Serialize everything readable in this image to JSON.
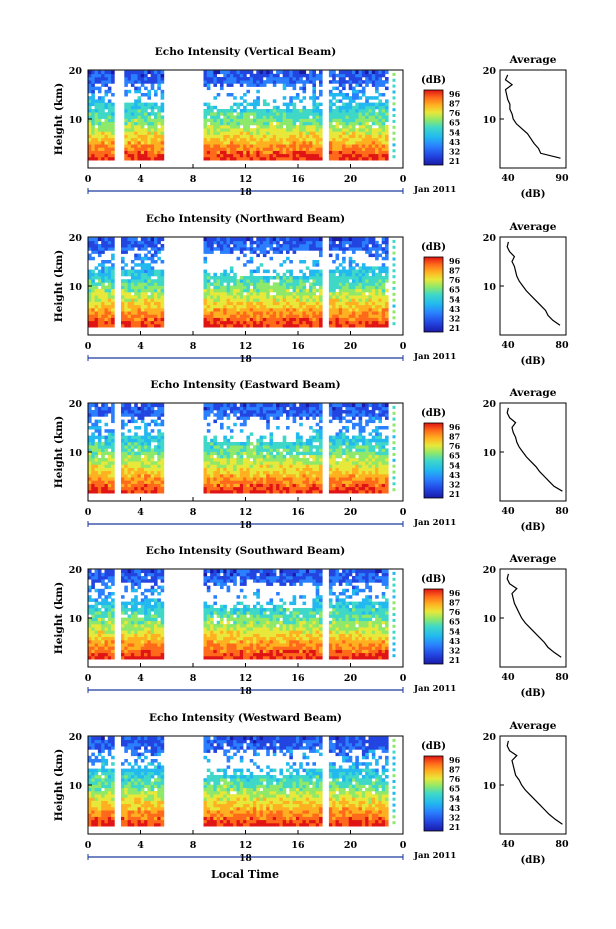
{
  "figure": {
    "xlabel": "Local Time",
    "date_label": "Jan 2011",
    "day_label": "18",
    "colorbar_unit": "(dB)",
    "colorbar_ticks": [
      "96",
      "87",
      "76",
      "65",
      "54",
      "43",
      "32",
      "21"
    ],
    "colorscale": [
      "#1a1aa8",
      "#2244e0",
      "#2a7fff",
      "#22b8f0",
      "#3fd8c8",
      "#8ee86a",
      "#e8e83a",
      "#ffb020",
      "#ff6a1a",
      "#e01414"
    ]
  },
  "chart_data": [
    {
      "type": "heatmap",
      "title": "Echo Intensity (Vertical Beam)",
      "ylabel": "Height (km)",
      "xlim": [
        0,
        24
      ],
      "ylim": [
        0,
        20
      ],
      "x_ticks": [
        "0",
        "4",
        "8",
        "12",
        "16",
        "20",
        "0"
      ],
      "y_ticks": [
        "20",
        "10"
      ],
      "data_gaps_hours": [
        [
          2.0,
          2.6
        ],
        [
          5.6,
          8.8
        ],
        [
          17.6,
          18.2
        ]
      ],
      "profile": {
        "title": "Average",
        "xlabel": "(dB)",
        "x_ticks": [
          "40",
          "90"
        ],
        "y_ticks": [
          "20",
          "10"
        ],
        "xlim": [
          35,
          95
        ],
        "height_km": [
          2,
          3,
          4,
          5,
          6,
          7,
          8,
          9,
          10,
          11,
          12,
          13,
          14,
          15,
          16,
          17,
          18,
          19
        ],
        "avg_db": [
          90,
          72,
          70,
          66,
          63,
          60,
          55,
          50,
          47,
          46,
          44,
          44,
          42,
          41,
          40,
          46,
          40,
          42
        ]
      }
    },
    {
      "type": "heatmap",
      "title": "Echo Intensity (Northward Beam)",
      "ylabel": "Height (km)",
      "xlim": [
        0,
        24
      ],
      "ylim": [
        0,
        20
      ],
      "x_ticks": [
        "0",
        "4",
        "8",
        "12",
        "16",
        "20",
        "0"
      ],
      "y_ticks": [
        "20",
        "10"
      ],
      "data_gaps_hours": [
        [
          2.0,
          2.5
        ],
        [
          5.6,
          8.8
        ],
        [
          17.6,
          18.2
        ]
      ],
      "profile": {
        "title": "Average",
        "xlabel": "(dB)",
        "x_ticks": [
          "40",
          "80"
        ],
        "y_ticks": [
          "20",
          "10"
        ],
        "xlim": [
          30,
          85
        ],
        "height_km": [
          2,
          3,
          4,
          5,
          6,
          7,
          8,
          9,
          10,
          11,
          12,
          13,
          14,
          15,
          16,
          17,
          18,
          19
        ],
        "avg_db": [
          80,
          74,
          70,
          68,
          64,
          60,
          56,
          52,
          49,
          46,
          44,
          43,
          42,
          40,
          42,
          38,
          36,
          37
        ]
      }
    },
    {
      "type": "heatmap",
      "title": "Echo Intensity (Eastward Beam)",
      "ylabel": "Height (km)",
      "xlim": [
        0,
        24
      ],
      "ylim": [
        0,
        20
      ],
      "x_ticks": [
        "0",
        "4",
        "8",
        "12",
        "16",
        "20",
        "0"
      ],
      "y_ticks": [
        "20",
        "10"
      ],
      "data_gaps_hours": [
        [
          2.0,
          2.5
        ],
        [
          5.6,
          8.8
        ],
        [
          17.6,
          18.2
        ]
      ],
      "profile": {
        "title": "Average",
        "xlabel": "(dB)",
        "x_ticks": [
          "40",
          "80"
        ],
        "y_ticks": [
          "20",
          "10"
        ],
        "xlim": [
          30,
          85
        ],
        "height_km": [
          2,
          3,
          4,
          5,
          6,
          7,
          8,
          9,
          10,
          11,
          12,
          13,
          14,
          15,
          16,
          17,
          18,
          19
        ],
        "avg_db": [
          82,
          75,
          71,
          67,
          63,
          60,
          56,
          52,
          49,
          46,
          44,
          43,
          41,
          40,
          43,
          38,
          36,
          37
        ]
      }
    },
    {
      "type": "heatmap",
      "title": "Echo Intensity (Southward Beam)",
      "ylabel": "Height (km)",
      "xlim": [
        0,
        24
      ],
      "ylim": [
        0,
        20
      ],
      "x_ticks": [
        "0",
        "4",
        "8",
        "12",
        "16",
        "20",
        "0"
      ],
      "y_ticks": [
        "20",
        "10"
      ],
      "data_gaps_hours": [
        [
          2.0,
          2.5
        ],
        [
          5.6,
          8.8
        ],
        [
          17.6,
          18.2
        ]
      ],
      "profile": {
        "title": "Average",
        "xlabel": "(dB)",
        "x_ticks": [
          "40",
          "80"
        ],
        "y_ticks": [
          "20",
          "10"
        ],
        "xlim": [
          30,
          85
        ],
        "height_km": [
          2,
          3,
          4,
          5,
          6,
          7,
          8,
          9,
          10,
          11,
          12,
          13,
          14,
          15,
          16,
          17,
          18,
          19
        ],
        "avg_db": [
          81,
          75,
          70,
          67,
          63,
          59,
          55,
          51,
          48,
          46,
          44,
          42,
          41,
          40,
          44,
          38,
          36,
          37
        ]
      }
    },
    {
      "type": "heatmap",
      "title": "Echo Intensity (Westward Beam)",
      "ylabel": "Height (km)",
      "xlim": [
        0,
        24
      ],
      "ylim": [
        0,
        20
      ],
      "x_ticks": [
        "0",
        "4",
        "8",
        "12",
        "16",
        "20",
        "0"
      ],
      "y_ticks": [
        "20",
        "10"
      ],
      "data_gaps_hours": [
        [
          2.0,
          2.5
        ],
        [
          5.6,
          8.8
        ],
        [
          17.6,
          18.2
        ]
      ],
      "profile": {
        "title": "Average",
        "xlabel": "(dB)",
        "x_ticks": [
          "40",
          "80"
        ],
        "y_ticks": [
          "20",
          "10"
        ],
        "xlim": [
          30,
          85
        ],
        "height_km": [
          2,
          3,
          4,
          5,
          6,
          7,
          8,
          9,
          10,
          11,
          12,
          13,
          14,
          15,
          16,
          17,
          18,
          19
        ],
        "avg_db": [
          82,
          76,
          71,
          67,
          63,
          59,
          55,
          51,
          48,
          46,
          43,
          42,
          41,
          40,
          44,
          38,
          36,
          37
        ]
      }
    }
  ]
}
